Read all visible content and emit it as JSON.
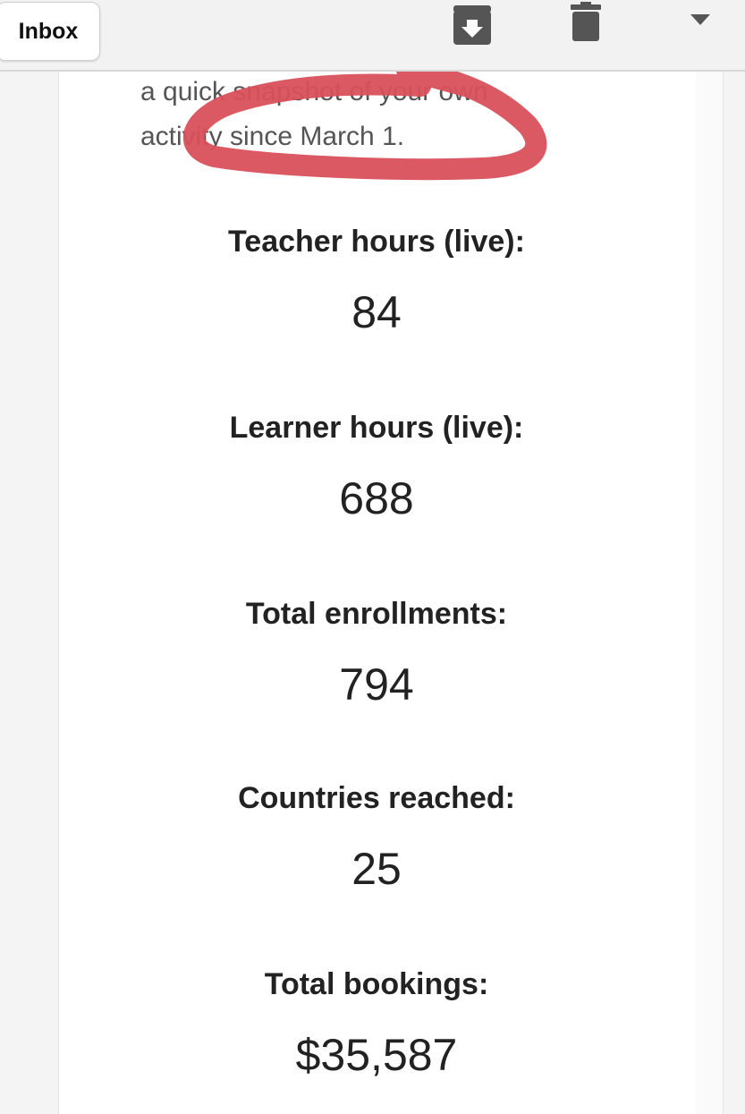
{
  "toolbar": {
    "inbox_label": "Inbox",
    "icons": [
      "archive-icon",
      "trash-icon",
      "dropdown-arrow-icon"
    ]
  },
  "email": {
    "intro_line1": "a quick snapshot of your own",
    "intro_line2": "activity since March 1.",
    "stats": [
      {
        "label": "Teacher hours (live):",
        "value": "84"
      },
      {
        "label": "Learner hours (live):",
        "value": "688"
      },
      {
        "label": "Total enrollments:",
        "value": "794"
      },
      {
        "label": "Countries reached:",
        "value": "25"
      },
      {
        "label": "Total bookings:",
        "value": "$35,587"
      }
    ]
  },
  "annotation": {
    "color": "#d9505a"
  }
}
